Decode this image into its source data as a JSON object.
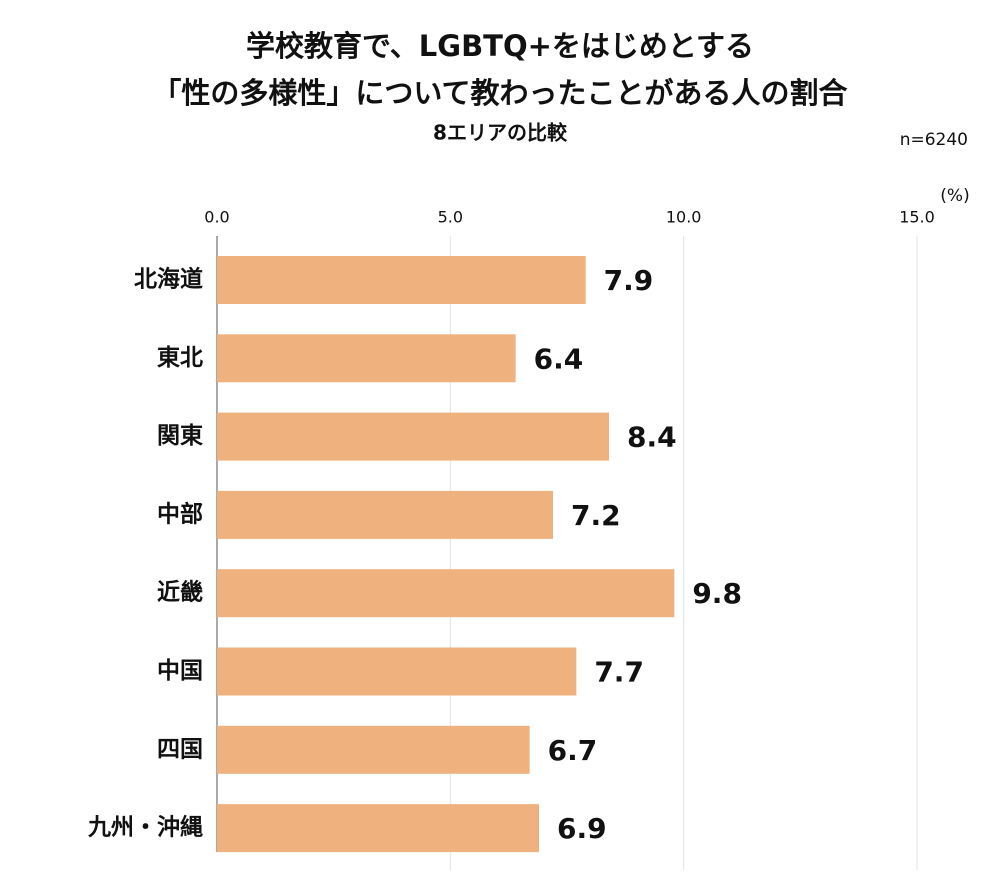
{
  "chart_data": {
    "type": "hbar",
    "title": [
      "学校教育で、LGBTQ+をはじめとする",
      "「性の多様性」について教わったことがある人の割合"
    ],
    "subtitle": "8エリアの比較",
    "note": "n=6240",
    "unit": "(%)",
    "categories": [
      "北海道",
      "東北",
      "関東",
      "中部",
      "近畿",
      "中国",
      "四国",
      "九州・沖縄"
    ],
    "values": [
      7.9,
      6.4,
      8.4,
      7.2,
      9.8,
      7.7,
      6.7,
      6.9
    ],
    "color": "#efb27f",
    "xlim": [
      0,
      15
    ],
    "xticks": [
      {
        "value": 0,
        "label": "0.0"
      },
      {
        "value": 5,
        "label": "5.0"
      },
      {
        "value": 10,
        "label": "10.0"
      },
      {
        "value": 15,
        "label": "15.0"
      }
    ],
    "grid": true
  }
}
